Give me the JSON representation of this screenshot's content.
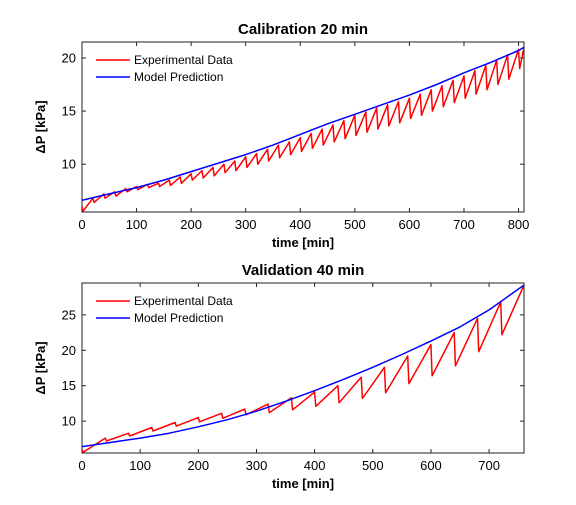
{
  "colors": {
    "experimental": "#ff0000",
    "model": "#0000ff"
  },
  "chart_data": [
    {
      "type": "line",
      "title": "Calibration 20 min",
      "xlabel": "time [min]",
      "ylabel": "ΔP [kPa]",
      "xlim": [
        0,
        810
      ],
      "ylim": [
        5.5,
        21.5
      ],
      "xticks": [
        0,
        100,
        200,
        300,
        400,
        500,
        600,
        700,
        800
      ],
      "yticks": [
        10,
        15,
        20
      ],
      "grid": false,
      "legend_position": "top-left",
      "series": [
        {
          "name": "Experimental Data",
          "color": "#ff0000",
          "sawtooth": true,
          "x": [
            0,
            20,
            40,
            60,
            80,
            100,
            120,
            140,
            160,
            180,
            200,
            220,
            240,
            260,
            280,
            300,
            320,
            340,
            360,
            380,
            400,
            420,
            440,
            460,
            480,
            500,
            520,
            540,
            560,
            580,
            600,
            620,
            640,
            660,
            680,
            700,
            720,
            740,
            760,
            780,
            800,
            810
          ],
          "y": [
            6.0,
            6.8,
            7.2,
            7.4,
            7.7,
            7.9,
            8.1,
            8.2,
            8.5,
            8.8,
            9.1,
            9.4,
            9.7,
            10.0,
            10.3,
            10.7,
            11.0,
            11.4,
            11.8,
            12.1,
            12.5,
            12.9,
            13.3,
            13.7,
            14.1,
            14.6,
            14.9,
            15.3,
            15.6,
            15.9,
            16.2,
            16.6,
            17.0,
            17.4,
            17.9,
            18.3,
            18.8,
            19.3,
            19.8,
            20.3,
            20.8,
            21.0
          ],
          "drop_to": [
            5.6,
            6.4,
            6.8,
            7.0,
            7.4,
            7.6,
            7.8,
            7.9,
            8.0,
            8.2,
            8.5,
            8.7,
            8.9,
            9.2,
            9.4,
            9.7,
            10.0,
            10.3,
            10.6,
            10.9,
            11.2,
            11.5,
            11.8,
            12.1,
            12.4,
            12.7,
            13.0,
            13.3,
            13.6,
            13.9,
            14.3,
            14.6,
            15.0,
            15.4,
            15.8,
            16.2,
            16.6,
            17.0,
            17.5,
            18.0,
            19.0,
            21.0
          ]
        },
        {
          "name": "Model Prediction",
          "color": "#0000ff",
          "x": [
            0,
            50,
            100,
            150,
            200,
            250,
            300,
            350,
            400,
            450,
            500,
            550,
            600,
            650,
            700,
            750,
            800,
            810
          ],
          "y": [
            6.6,
            7.2,
            7.8,
            8.5,
            9.3,
            10.1,
            10.9,
            11.8,
            12.8,
            13.8,
            14.7,
            15.6,
            16.5,
            17.5,
            18.6,
            19.6,
            20.7,
            21.0
          ]
        }
      ]
    },
    {
      "type": "line",
      "title": "Validation 40 min",
      "xlabel": "time [min]",
      "ylabel": "ΔP [kPa]",
      "xlim": [
        0,
        760
      ],
      "ylim": [
        5.5,
        29.5
      ],
      "xticks": [
        0,
        100,
        200,
        300,
        400,
        500,
        600,
        700
      ],
      "yticks": [
        10,
        15,
        20,
        25
      ],
      "grid": false,
      "legend_position": "top-left",
      "series": [
        {
          "name": "Experimental Data",
          "color": "#ff0000",
          "sawtooth": true,
          "x": [
            0,
            40,
            80,
            120,
            160,
            200,
            240,
            280,
            320,
            360,
            400,
            440,
            480,
            520,
            560,
            600,
            640,
            680,
            720,
            760
          ],
          "y": [
            6.0,
            7.6,
            8.3,
            9.1,
            9.8,
            10.5,
            11.1,
            11.7,
            12.4,
            13.3,
            14.1,
            15.0,
            16.2,
            17.6,
            19.2,
            20.8,
            22.5,
            24.5,
            26.8,
            29.2
          ],
          "drop_to": [
            5.6,
            7.2,
            7.9,
            8.6,
            9.3,
            9.9,
            10.4,
            10.9,
            11.2,
            11.6,
            12.1,
            12.6,
            13.2,
            14.0,
            15.3,
            16.4,
            17.8,
            19.8,
            22.2,
            29.2
          ]
        },
        {
          "name": "Model Prediction",
          "color": "#0000ff",
          "x": [
            0,
            50,
            100,
            150,
            200,
            250,
            300,
            350,
            400,
            450,
            500,
            550,
            600,
            650,
            700,
            760
          ],
          "y": [
            6.4,
            7.0,
            7.6,
            8.3,
            9.2,
            10.2,
            11.4,
            12.8,
            14.3,
            15.9,
            17.6,
            19.4,
            21.3,
            23.3,
            25.7,
            29.2
          ]
        }
      ]
    }
  ]
}
